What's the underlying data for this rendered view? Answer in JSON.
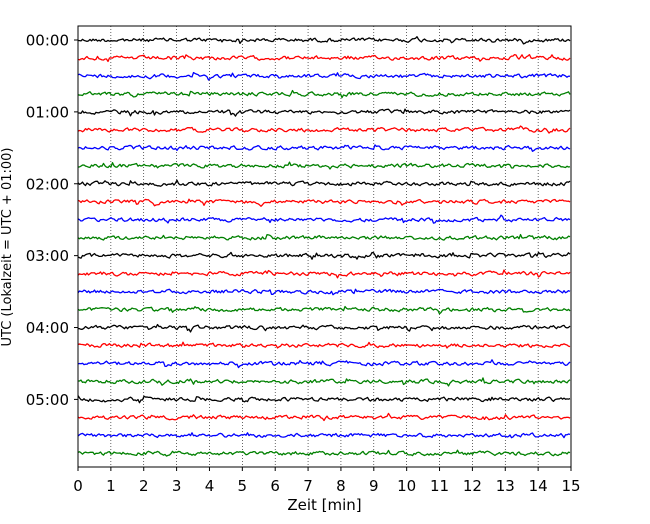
{
  "chart_data": {
    "type": "line",
    "title": "",
    "xlabel": "Zeit  [min]",
    "ylabel": "UTC (Lokalzeit = UTC + 01:00)",
    "xlim": [
      0,
      15
    ],
    "x_ticks": [
      "0",
      "1",
      "2",
      "3",
      "4",
      "5",
      "6",
      "7",
      "8",
      "9",
      "10",
      "11",
      "12",
      "13",
      "14",
      "15"
    ],
    "y_tick_labels": [
      "00:00",
      "01:00",
      "02:00",
      "03:00",
      "04:00",
      "05:00"
    ],
    "trace_interval_minutes": 15,
    "trace_count": 24,
    "trace_colors": [
      "#000000",
      "#ff0000",
      "#0000ff",
      "#008000"
    ],
    "vertical_grid": true,
    "grid_style": "dotted",
    "legend": "none"
  }
}
